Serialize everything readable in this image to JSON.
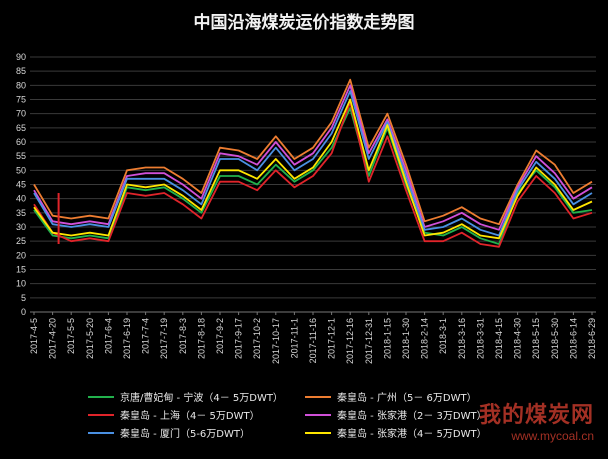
{
  "title": "中国沿海煤炭运价指数走势图",
  "watermark": {
    "name": "我的煤炭网",
    "url": "www.mycoal.cn"
  },
  "colors": {
    "background": "#000000",
    "grid": "#3a3a3a",
    "京唐": "#22b14c",
    "广州": "#ed7d31",
    "上海": "#e0242a",
    "张家港紫": "#d050d8",
    "厦门": "#4a90e2",
    "张家港黄": "#ffe600"
  },
  "chart_data": {
    "type": "line",
    "title": "中国沿海煤炭运价指数走势图",
    "xlabel": "",
    "ylabel": "",
    "ylim": [
      0,
      90
    ],
    "yticks": [
      0,
      5,
      10,
      15,
      20,
      25,
      30,
      35,
      40,
      45,
      50,
      55,
      60,
      65,
      70,
      75,
      80,
      85,
      90
    ],
    "grid": true,
    "legend_position": "bottom",
    "x_tick_labels": [
      "2017-4-5",
      "2017-4-20",
      "2017-5-5",
      "2017-5-20",
      "2017-6-4",
      "2017-6-19",
      "2017-7-4",
      "2017-7-19",
      "2017-8-3",
      "2017-8-18",
      "2017-9-2",
      "2017-9-17",
      "2017-10-2",
      "2017-10-17",
      "2017-11-1",
      "2017-11-16",
      "2017-12-1",
      "2017-12-16",
      "2017-12-31",
      "2018-1-15",
      "2018-1-30",
      "2018-2-14",
      "2018-3-1",
      "2018-3-16",
      "2018-3-31",
      "2018-4-15",
      "2018-4-30",
      "2018-5-15",
      "2018-5-30",
      "2018-6-14",
      "2018-6-29"
    ],
    "x": [
      "2017-4-5",
      "2017-4-20",
      "2017-5-5",
      "2017-5-20",
      "2017-6-4",
      "2017-6-19",
      "2017-7-4",
      "2017-7-19",
      "2017-8-3",
      "2017-8-18",
      "2017-9-2",
      "2017-9-17",
      "2017-10-2",
      "2017-10-17",
      "2017-11-1",
      "2017-11-16",
      "2017-12-1",
      "2017-12-16",
      "2017-12-31",
      "2018-1-15",
      "2018-1-30",
      "2018-2-14",
      "2018-3-1",
      "2018-3-16",
      "2018-3-31",
      "2018-4-15",
      "2018-4-30",
      "2018-5-15",
      "2018-5-30",
      "2018-6-14",
      "2018-6-29"
    ],
    "series": [
      {
        "name": "京唐/曹妃甸 - 宁波（4－ 5万DWT）",
        "color": "#22b14c",
        "values": [
          36,
          27,
          26,
          27,
          26,
          44,
          43,
          44,
          40,
          35,
          48,
          48,
          45,
          52,
          46,
          50,
          58,
          72,
          48,
          65,
          45,
          28,
          27,
          30,
          26,
          24,
          42,
          50,
          44,
          35,
          36
        ]
      },
      {
        "name": "秦皇岛 - 广州（5－ 6万DWT）",
        "color": "#ed7d31",
        "values": [
          45,
          34,
          33,
          34,
          33,
          50,
          51,
          51,
          47,
          42,
          58,
          57,
          54,
          62,
          54,
          58,
          67,
          82,
          58,
          70,
          52,
          32,
          34,
          37,
          33,
          31,
          45,
          57,
          52,
          42,
          46
        ]
      },
      {
        "name": "秦皇岛 - 上海（4－ 5万DWT）",
        "color": "#e0242a",
        "values": [
          38,
          28,
          25,
          26,
          25,
          42,
          41,
          42,
          38,
          33,
          46,
          46,
          43,
          50,
          44,
          48,
          56,
          74,
          46,
          62,
          43,
          25,
          25,
          28,
          24,
          23,
          39,
          48,
          42,
          33,
          35
        ]
      },
      {
        "name": "秦皇岛 - 张家港（2－ 3万DWT）",
        "color": "#d050d8",
        "values": [
          43,
          32,
          31,
          32,
          31,
          48,
          49,
          49,
          45,
          40,
          56,
          55,
          52,
          60,
          52,
          56,
          65,
          80,
          56,
          68,
          50,
          30,
          32,
          35,
          31,
          29,
          44,
          55,
          49,
          40,
          44
        ]
      },
      {
        "name": "秦皇岛 - 厦门（5-6万DWT）",
        "color": "#4a90e2",
        "values": [
          42,
          31,
          30,
          31,
          30,
          47,
          47,
          47,
          43,
          38,
          54,
          54,
          50,
          58,
          50,
          54,
          63,
          78,
          54,
          67,
          48,
          29,
          30,
          33,
          29,
          27,
          43,
          53,
          47,
          38,
          42
        ]
      },
      {
        "name": "秦皇岛 - 张家港（4－ 5万DWT）",
        "color": "#ffe600",
        "values": [
          37,
          28,
          27,
          28,
          27,
          45,
          44,
          45,
          41,
          36,
          50,
          50,
          47,
          54,
          47,
          51,
          60,
          75,
          50,
          66,
          46,
          27,
          28,
          31,
          27,
          26,
          41,
          51,
          45,
          36,
          39
        ]
      }
    ],
    "annotations": [
      {
        "type": "vertical-marker",
        "x": "2017-4-20",
        "from": 24,
        "to": 42,
        "color": "#e0242a"
      }
    ]
  },
  "legend": {
    "items": [
      {
        "label": "京唐/曹妃甸 - 宁波（4－ 5万DWT）",
        "color": "#22b14c"
      },
      {
        "label": "秦皇岛 - 广州（5－ 6万DWT）",
        "color": "#ed7d31"
      },
      {
        "label": "秦皇岛 - 上海（4－ 5万DWT）",
        "color": "#e0242a"
      },
      {
        "label": "秦皇岛 - 张家港（2－ 3万DWT）",
        "color": "#d050d8"
      },
      {
        "label": "秦皇岛 - 厦门（5-6万DWT）",
        "color": "#4a90e2"
      },
      {
        "label": "秦皇岛 - 张家港（4－ 5万DWT）",
        "color": "#ffe600"
      }
    ]
  }
}
